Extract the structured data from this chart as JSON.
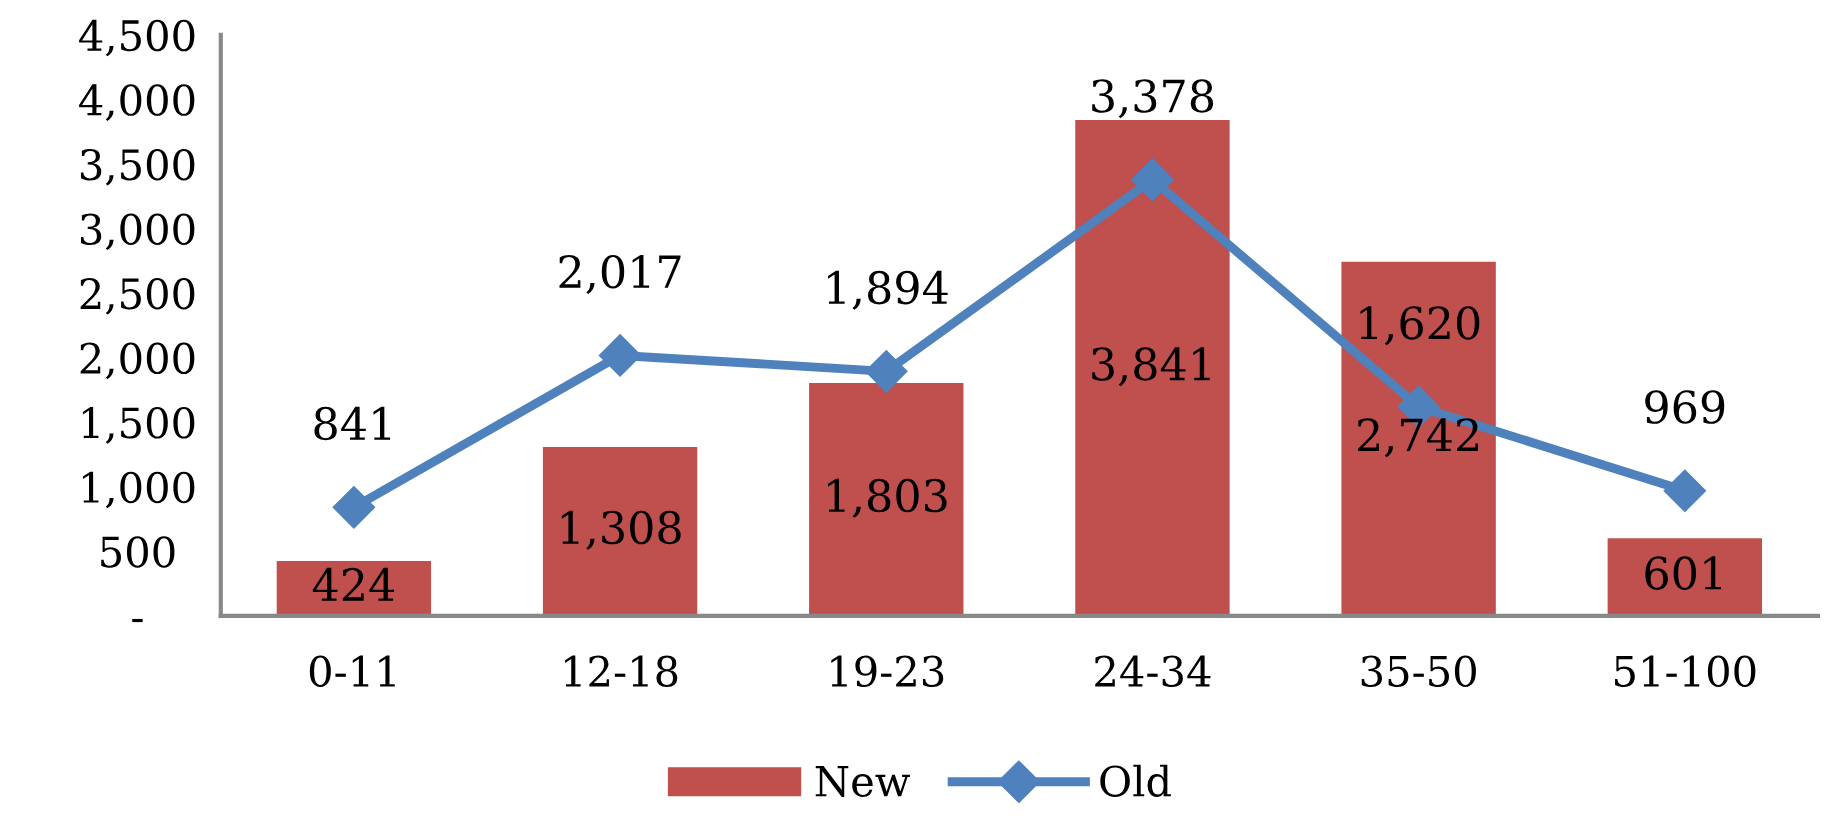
{
  "chart_data": {
    "type": "bar",
    "categories": [
      "0-11",
      "12-18",
      "19-23",
      "24-34",
      "35-50",
      "51-100"
    ],
    "series": [
      {
        "name": "New",
        "color": "#c0504d",
        "values": [
          424,
          1308,
          1803,
          3841,
          2742,
          601
        ],
        "value_labels": [
          "424",
          "1,308",
          "1,803",
          "3,841",
          "2,742",
          "601"
        ]
      },
      {
        "name": "Old",
        "type": "line",
        "color": "#4f81bd",
        "marker": "diamond",
        "values": [
          841,
          2017,
          1894,
          3378,
          1620,
          969
        ],
        "value_labels": [
          "841",
          "2,017",
          "1,894",
          "3,378",
          "1,620",
          "969"
        ]
      }
    ],
    "ylim": [
      0,
      4500
    ],
    "yticks": [
      {
        "value": 0,
        "label": "-"
      },
      500,
      {
        "value": 1000,
        "label": "1,000"
      },
      {
        "value": 1500,
        "label": "1,500"
      },
      {
        "value": 2000,
        "label": "2,000"
      },
      {
        "value": 2500,
        "label": "2,500"
      },
      {
        "value": 3000,
        "label": "3,000"
      },
      {
        "value": 3500,
        "label": "3,500"
      },
      {
        "value": 4000,
        "label": "4,000"
      },
      {
        "value": 4500,
        "label": "4,500"
      }
    ],
    "grid": false,
    "legend": "bottom"
  }
}
